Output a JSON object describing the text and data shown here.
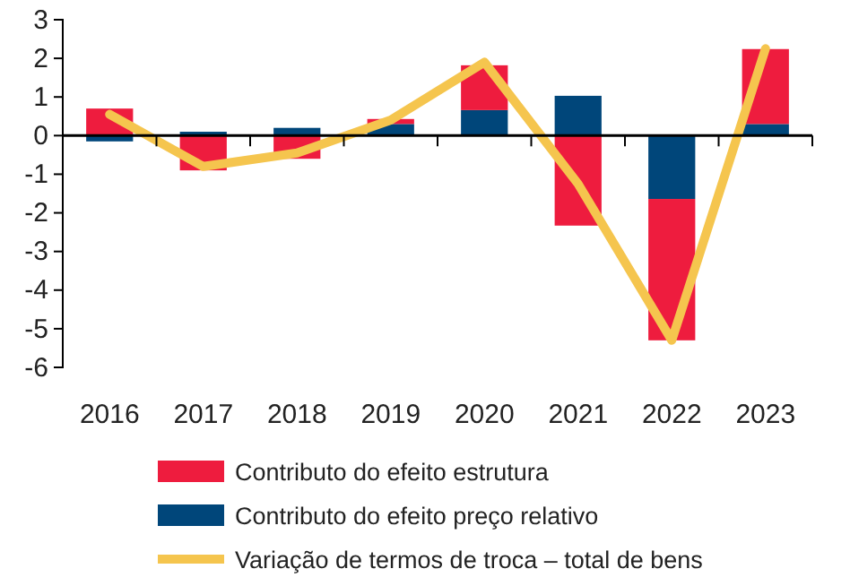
{
  "chart_data": {
    "type": "bar",
    "stacked": true,
    "categories": [
      "2016",
      "2017",
      "2018",
      "2019",
      "2020",
      "2021",
      "2022",
      "2023"
    ],
    "series": [
      {
        "name": "Contributo do efeito preço relativo",
        "color": "#00467a",
        "values": [
          -0.15,
          0.1,
          0.2,
          0.3,
          0.66,
          1.03,
          -1.64,
          0.3
        ]
      },
      {
        "name": "Contributo do efeito estrutura",
        "color": "#ee1c3e",
        "values": [
          0.7,
          -0.9,
          -0.6,
          0.13,
          1.16,
          -2.33,
          -3.66,
          1.94
        ]
      },
      {
        "name": "Variação de termos de troca – total de bens",
        "type": "line",
        "color": "#f5c54e",
        "values": [
          0.55,
          -0.8,
          -0.45,
          0.4,
          1.9,
          -1.25,
          -5.3,
          2.25
        ]
      }
    ],
    "ylim": [
      -6,
      3
    ],
    "yticks": [
      -6,
      -5,
      -4,
      -3,
      -2,
      -1,
      0,
      1,
      2,
      3
    ],
    "legend": "bottom"
  }
}
